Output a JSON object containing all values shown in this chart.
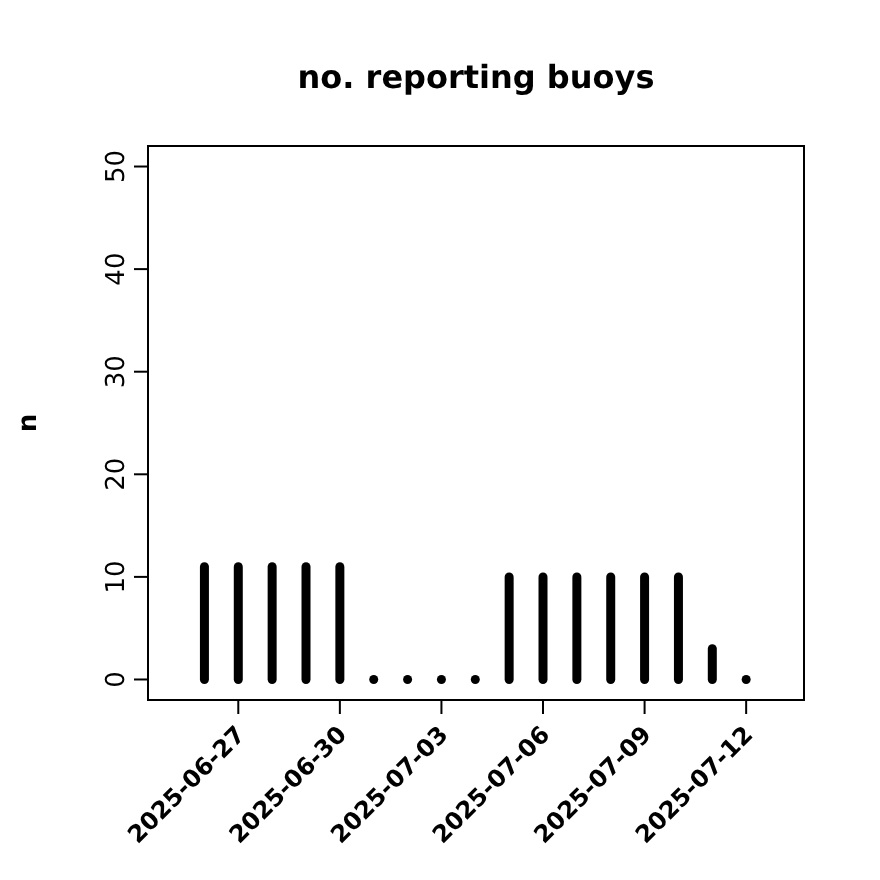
{
  "chart_data": {
    "type": "bar",
    "title": "no. reporting buoys",
    "ylabel": "n",
    "x": [
      "2025-06-26",
      "2025-06-27",
      "2025-06-28",
      "2025-06-29",
      "2025-06-30",
      "2025-07-01",
      "2025-07-02",
      "2025-07-03",
      "2025-07-04",
      "2025-07-05",
      "2025-07-06",
      "2025-07-07",
      "2025-07-08",
      "2025-07-09",
      "2025-07-10",
      "2025-07-11",
      "2025-07-12"
    ],
    "values": [
      11,
      11,
      11,
      11,
      11,
      0,
      0,
      0,
      0,
      10,
      10,
      10,
      10,
      10,
      10,
      3,
      0
    ],
    "color": "#000000",
    "xlim": [
      "2025-06-24T08:00",
      "2025-07-13T17:00"
    ],
    "xticks": [
      {
        "value": "2025-06-27",
        "label": "2025-06-27"
      },
      {
        "value": "2025-06-30",
        "label": "2025-06-30"
      },
      {
        "value": "2025-07-03",
        "label": "2025-07-03"
      },
      {
        "value": "2025-07-06",
        "label": "2025-07-06"
      },
      {
        "value": "2025-07-09",
        "label": "2025-07-09"
      },
      {
        "value": "2025-07-12",
        "label": "2025-07-12"
      }
    ],
    "ylim": [
      -2,
      52
    ],
    "yticks": [
      0,
      10,
      20,
      30,
      40,
      50
    ]
  }
}
